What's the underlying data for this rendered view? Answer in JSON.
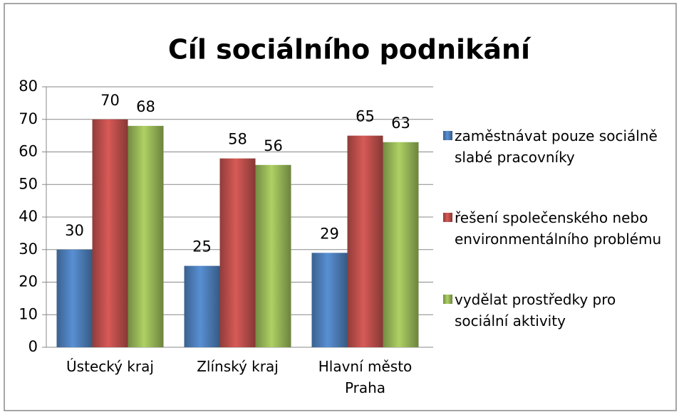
{
  "chart_data": {
    "type": "bar",
    "title": "Cíl sociálního podnikání",
    "categories": [
      "Ústecký kraj",
      "Zlínský kraj",
      "Hlavní město Praha"
    ],
    "series": [
      {
        "name": "zaměstnávat pouze sociálně slabé pracovníky",
        "color": "#4f81bd",
        "values": [
          30,
          25,
          29
        ]
      },
      {
        "name": "řešení společenského nebo environmentálního problému",
        "color": "#c0504d",
        "values": [
          70,
          58,
          65
        ]
      },
      {
        "name": "vydělat prostředky pro sociální aktivity",
        "color": "#9bbb59",
        "values": [
          68,
          56,
          63
        ]
      }
    ],
    "ylim": [
      0,
      80
    ],
    "yticks": [
      0,
      10,
      20,
      30,
      40,
      50,
      60,
      70,
      80
    ],
    "grid": true,
    "legend": "right"
  }
}
